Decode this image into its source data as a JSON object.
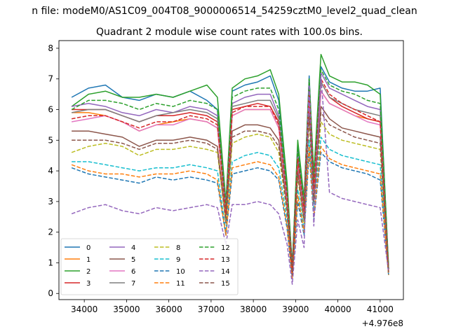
{
  "figure": {
    "suptitle": "n file: modeM0/AS1C09_004T08_9000006514_54259cztM0_level2_quad_clean",
    "title": "Quadrant 2 module wise count rates with 100.0s bins.",
    "x_offset_text": "+4.976e8"
  },
  "chart_data": {
    "type": "line",
    "title": "Quadrant 2 module wise count rates with 100.0s bins.",
    "xlabel": "",
    "ylabel": "",
    "x_offset": 497600000,
    "xlim": [
      33400,
      41550
    ],
    "ylim": [
      -0.2,
      8.25
    ],
    "xticks": [
      34000,
      35000,
      36000,
      37000,
      38000,
      39000,
      40000,
      41000
    ],
    "yticks": [
      0,
      1,
      2,
      3,
      4,
      5,
      6,
      7,
      8
    ],
    "x": [
      33700,
      34100,
      34500,
      34900,
      35300,
      35700,
      36100,
      36500,
      36900,
      37150,
      37350,
      37500,
      37800,
      38100,
      38400,
      38600,
      38800,
      38920,
      39050,
      39200,
      39320,
      39430,
      39600,
      39800,
      40100,
      40400,
      40700,
      41000,
      41200
    ],
    "legend": {
      "location": "lower-left",
      "columns": 4
    },
    "series": [
      {
        "name": "0",
        "color": "#1f77b4",
        "dash": "solid",
        "values": [
          6.4,
          6.7,
          6.8,
          6.4,
          6.3,
          6.5,
          6.4,
          6.6,
          6.3,
          6.0,
          2.8,
          6.6,
          6.8,
          6.9,
          7.1,
          6.3,
          3.5,
          0.9,
          4.9,
          3.0,
          7.1,
          3.8,
          7.4,
          6.9,
          6.7,
          6.6,
          6.6,
          6.7,
          0.8
        ]
      },
      {
        "name": "1",
        "color": "#ff7f0e",
        "dash": "solid",
        "values": [
          5.9,
          5.9,
          5.8,
          5.6,
          5.3,
          5.5,
          5.6,
          5.7,
          5.6,
          5.4,
          2.5,
          5.8,
          6.0,
          6.0,
          6.0,
          5.4,
          3.0,
          0.7,
          4.2,
          2.6,
          6.5,
          3.3,
          6.6,
          6.2,
          6.0,
          5.8,
          5.7,
          5.6,
          0.7
        ]
      },
      {
        "name": "2",
        "color": "#2ca02c",
        "dash": "solid",
        "values": [
          6.1,
          6.5,
          6.6,
          6.4,
          6.4,
          6.5,
          6.4,
          6.6,
          6.8,
          6.4,
          3.0,
          6.7,
          7.0,
          7.1,
          7.3,
          6.5,
          3.6,
          0.9,
          5.0,
          3.1,
          7.0,
          3.9,
          7.8,
          7.1,
          6.9,
          6.9,
          6.8,
          6.5,
          0.9
        ]
      },
      {
        "name": "3",
        "color": "#d62728",
        "dash": "solid",
        "values": [
          6.0,
          6.0,
          6.0,
          5.8,
          5.6,
          5.8,
          5.8,
          5.9,
          5.8,
          5.6,
          2.7,
          6.0,
          6.1,
          6.2,
          6.1,
          5.6,
          3.2,
          0.8,
          4.5,
          2.8,
          6.8,
          3.5,
          6.9,
          6.4,
          6.1,
          5.9,
          5.7,
          5.6,
          0.8
        ]
      },
      {
        "name": "4",
        "color": "#9467bd",
        "dash": "solid",
        "values": [
          6.1,
          6.2,
          6.1,
          5.9,
          5.8,
          6.0,
          5.9,
          6.1,
          6.0,
          5.8,
          2.9,
          6.2,
          6.4,
          6.5,
          6.5,
          5.8,
          3.3,
          0.8,
          4.6,
          2.9,
          6.9,
          3.6,
          7.2,
          6.7,
          6.5,
          6.3,
          6.1,
          6.0,
          0.8
        ]
      },
      {
        "name": "5",
        "color": "#8c564b",
        "dash": "solid",
        "values": [
          5.3,
          5.3,
          5.2,
          5.1,
          4.8,
          5.0,
          5.0,
          5.1,
          5.0,
          4.8,
          2.4,
          5.3,
          5.5,
          5.5,
          5.4,
          5.0,
          2.8,
          0.7,
          4.0,
          2.4,
          6.0,
          3.1,
          6.1,
          5.7,
          5.4,
          5.3,
          5.2,
          5.1,
          0.7
        ]
      },
      {
        "name": "6",
        "color": "#e377c2",
        "dash": "solid",
        "values": [
          5.6,
          5.7,
          5.8,
          5.6,
          5.3,
          5.5,
          5.5,
          5.7,
          5.6,
          5.4,
          2.6,
          5.8,
          6.0,
          6.0,
          6.0,
          5.4,
          3.0,
          0.7,
          4.3,
          2.6,
          6.4,
          3.3,
          6.6,
          6.2,
          6.0,
          5.8,
          5.6,
          5.5,
          0.7
        ]
      },
      {
        "name": "7",
        "color": "#7f7f7f",
        "dash": "solid",
        "values": [
          5.9,
          6.0,
          6.0,
          5.8,
          5.6,
          5.8,
          5.9,
          6.0,
          5.9,
          5.7,
          2.7,
          6.1,
          6.2,
          6.3,
          6.3,
          5.7,
          3.2,
          0.8,
          4.4,
          2.8,
          6.7,
          3.5,
          6.9,
          6.4,
          6.2,
          6.0,
          5.9,
          5.8,
          0.8
        ]
      },
      {
        "name": "8",
        "color": "#bcbd22",
        "dash": "dashed",
        "values": [
          4.6,
          4.8,
          4.9,
          4.8,
          4.5,
          4.7,
          4.7,
          4.8,
          4.7,
          4.6,
          2.3,
          4.9,
          5.1,
          5.2,
          5.1,
          4.6,
          2.6,
          0.6,
          3.8,
          2.3,
          5.7,
          2.9,
          5.6,
          5.2,
          5.0,
          4.9,
          4.8,
          4.7,
          0.6
        ]
      },
      {
        "name": "9",
        "color": "#17becf",
        "dash": "dashed",
        "values": [
          4.3,
          4.3,
          4.2,
          4.1,
          4.0,
          4.1,
          4.1,
          4.2,
          4.1,
          4.0,
          2.0,
          4.3,
          4.5,
          4.6,
          4.5,
          4.1,
          2.4,
          0.6,
          3.4,
          2.1,
          5.0,
          2.7,
          5.1,
          4.7,
          4.5,
          4.4,
          4.3,
          4.2,
          0.6
        ]
      },
      {
        "name": "10",
        "color": "#1f77b4",
        "dash": "dashed",
        "values": [
          4.1,
          3.9,
          3.8,
          3.7,
          3.6,
          3.8,
          3.7,
          3.8,
          3.7,
          3.6,
          1.9,
          3.9,
          4.0,
          4.1,
          4.0,
          3.7,
          2.1,
          0.5,
          3.0,
          1.9,
          4.6,
          2.4,
          4.6,
          4.3,
          4.1,
          4.0,
          3.9,
          3.7,
          0.6
        ]
      },
      {
        "name": "11",
        "color": "#ff7f0e",
        "dash": "dashed",
        "values": [
          4.2,
          4.0,
          3.9,
          3.9,
          3.8,
          3.9,
          3.9,
          4.0,
          3.9,
          3.7,
          1.9,
          4.1,
          4.2,
          4.3,
          4.2,
          3.8,
          2.2,
          0.5,
          3.2,
          2.0,
          4.8,
          2.5,
          4.8,
          4.4,
          4.2,
          4.1,
          4.0,
          3.9,
          0.6
        ]
      },
      {
        "name": "12",
        "color": "#2ca02c",
        "dash": "dashed",
        "values": [
          6.0,
          6.3,
          6.3,
          6.2,
          6.0,
          6.2,
          6.1,
          6.3,
          6.2,
          6.0,
          2.8,
          6.4,
          6.6,
          6.7,
          6.7,
          6.0,
          3.4,
          0.8,
          4.7,
          2.9,
          7.0,
          3.7,
          7.3,
          6.8,
          6.6,
          6.5,
          6.3,
          6.2,
          0.8
        ]
      },
      {
        "name": "13",
        "color": "#d62728",
        "dash": "dashed",
        "values": [
          5.7,
          5.8,
          5.8,
          5.6,
          5.4,
          5.6,
          5.6,
          5.8,
          5.7,
          5.5,
          2.6,
          5.9,
          6.1,
          6.1,
          6.1,
          5.5,
          3.1,
          0.7,
          4.4,
          2.7,
          6.6,
          3.4,
          7.0,
          6.5,
          6.2,
          6.0,
          5.8,
          5.6,
          0.7
        ]
      },
      {
        "name": "14",
        "color": "#9467bd",
        "dash": "dashed",
        "values": [
          2.6,
          2.8,
          2.9,
          2.7,
          2.6,
          2.8,
          2.7,
          2.8,
          2.9,
          2.8,
          1.6,
          2.9,
          2.9,
          3.0,
          2.9,
          2.6,
          1.6,
          0.3,
          2.4,
          1.5,
          6.8,
          2.2,
          7.1,
          3.3,
          3.1,
          3.0,
          2.9,
          2.8,
          0.7
        ]
      },
      {
        "name": "15",
        "color": "#8c564b",
        "dash": "dashed",
        "values": [
          5.0,
          5.0,
          5.0,
          4.9,
          4.7,
          4.9,
          4.9,
          5.0,
          4.9,
          4.7,
          2.3,
          5.1,
          5.3,
          5.3,
          5.2,
          4.8,
          2.7,
          0.6,
          3.9,
          2.4,
          5.8,
          3.0,
          5.9,
          5.5,
          5.3,
          5.1,
          5.0,
          4.9,
          0.7
        ]
      }
    ]
  }
}
